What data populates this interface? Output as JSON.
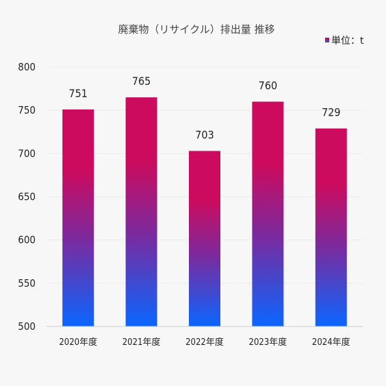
{
  "chart_data": {
    "type": "bar",
    "title": "廃棄物（リサイクル）排出量 推移",
    "legend": {
      "label": "単位：t",
      "placement": "top-right"
    },
    "categories": [
      "2020年度",
      "2021年度",
      "2022年度",
      "2023年度",
      "2024年度"
    ],
    "values": [
      751,
      765,
      703,
      760,
      729
    ],
    "data_labels": [
      "751",
      "765",
      "703",
      "760",
      "729"
    ],
    "ylim": [
      500,
      800
    ],
    "yticks": [
      500,
      550,
      600,
      650,
      700,
      750,
      800
    ],
    "ytick_labels": [
      "500",
      "550",
      "600",
      "650",
      "700",
      "750",
      "800"
    ],
    "grid": true,
    "colors": {
      "bar_top": "#cc0b5e",
      "bar_mid": "#7a2a9e",
      "bar_bottom": "#0a66ff",
      "grid": "#ebebeb",
      "axis": "#cccccc",
      "background": "#f7f7f7"
    }
  }
}
